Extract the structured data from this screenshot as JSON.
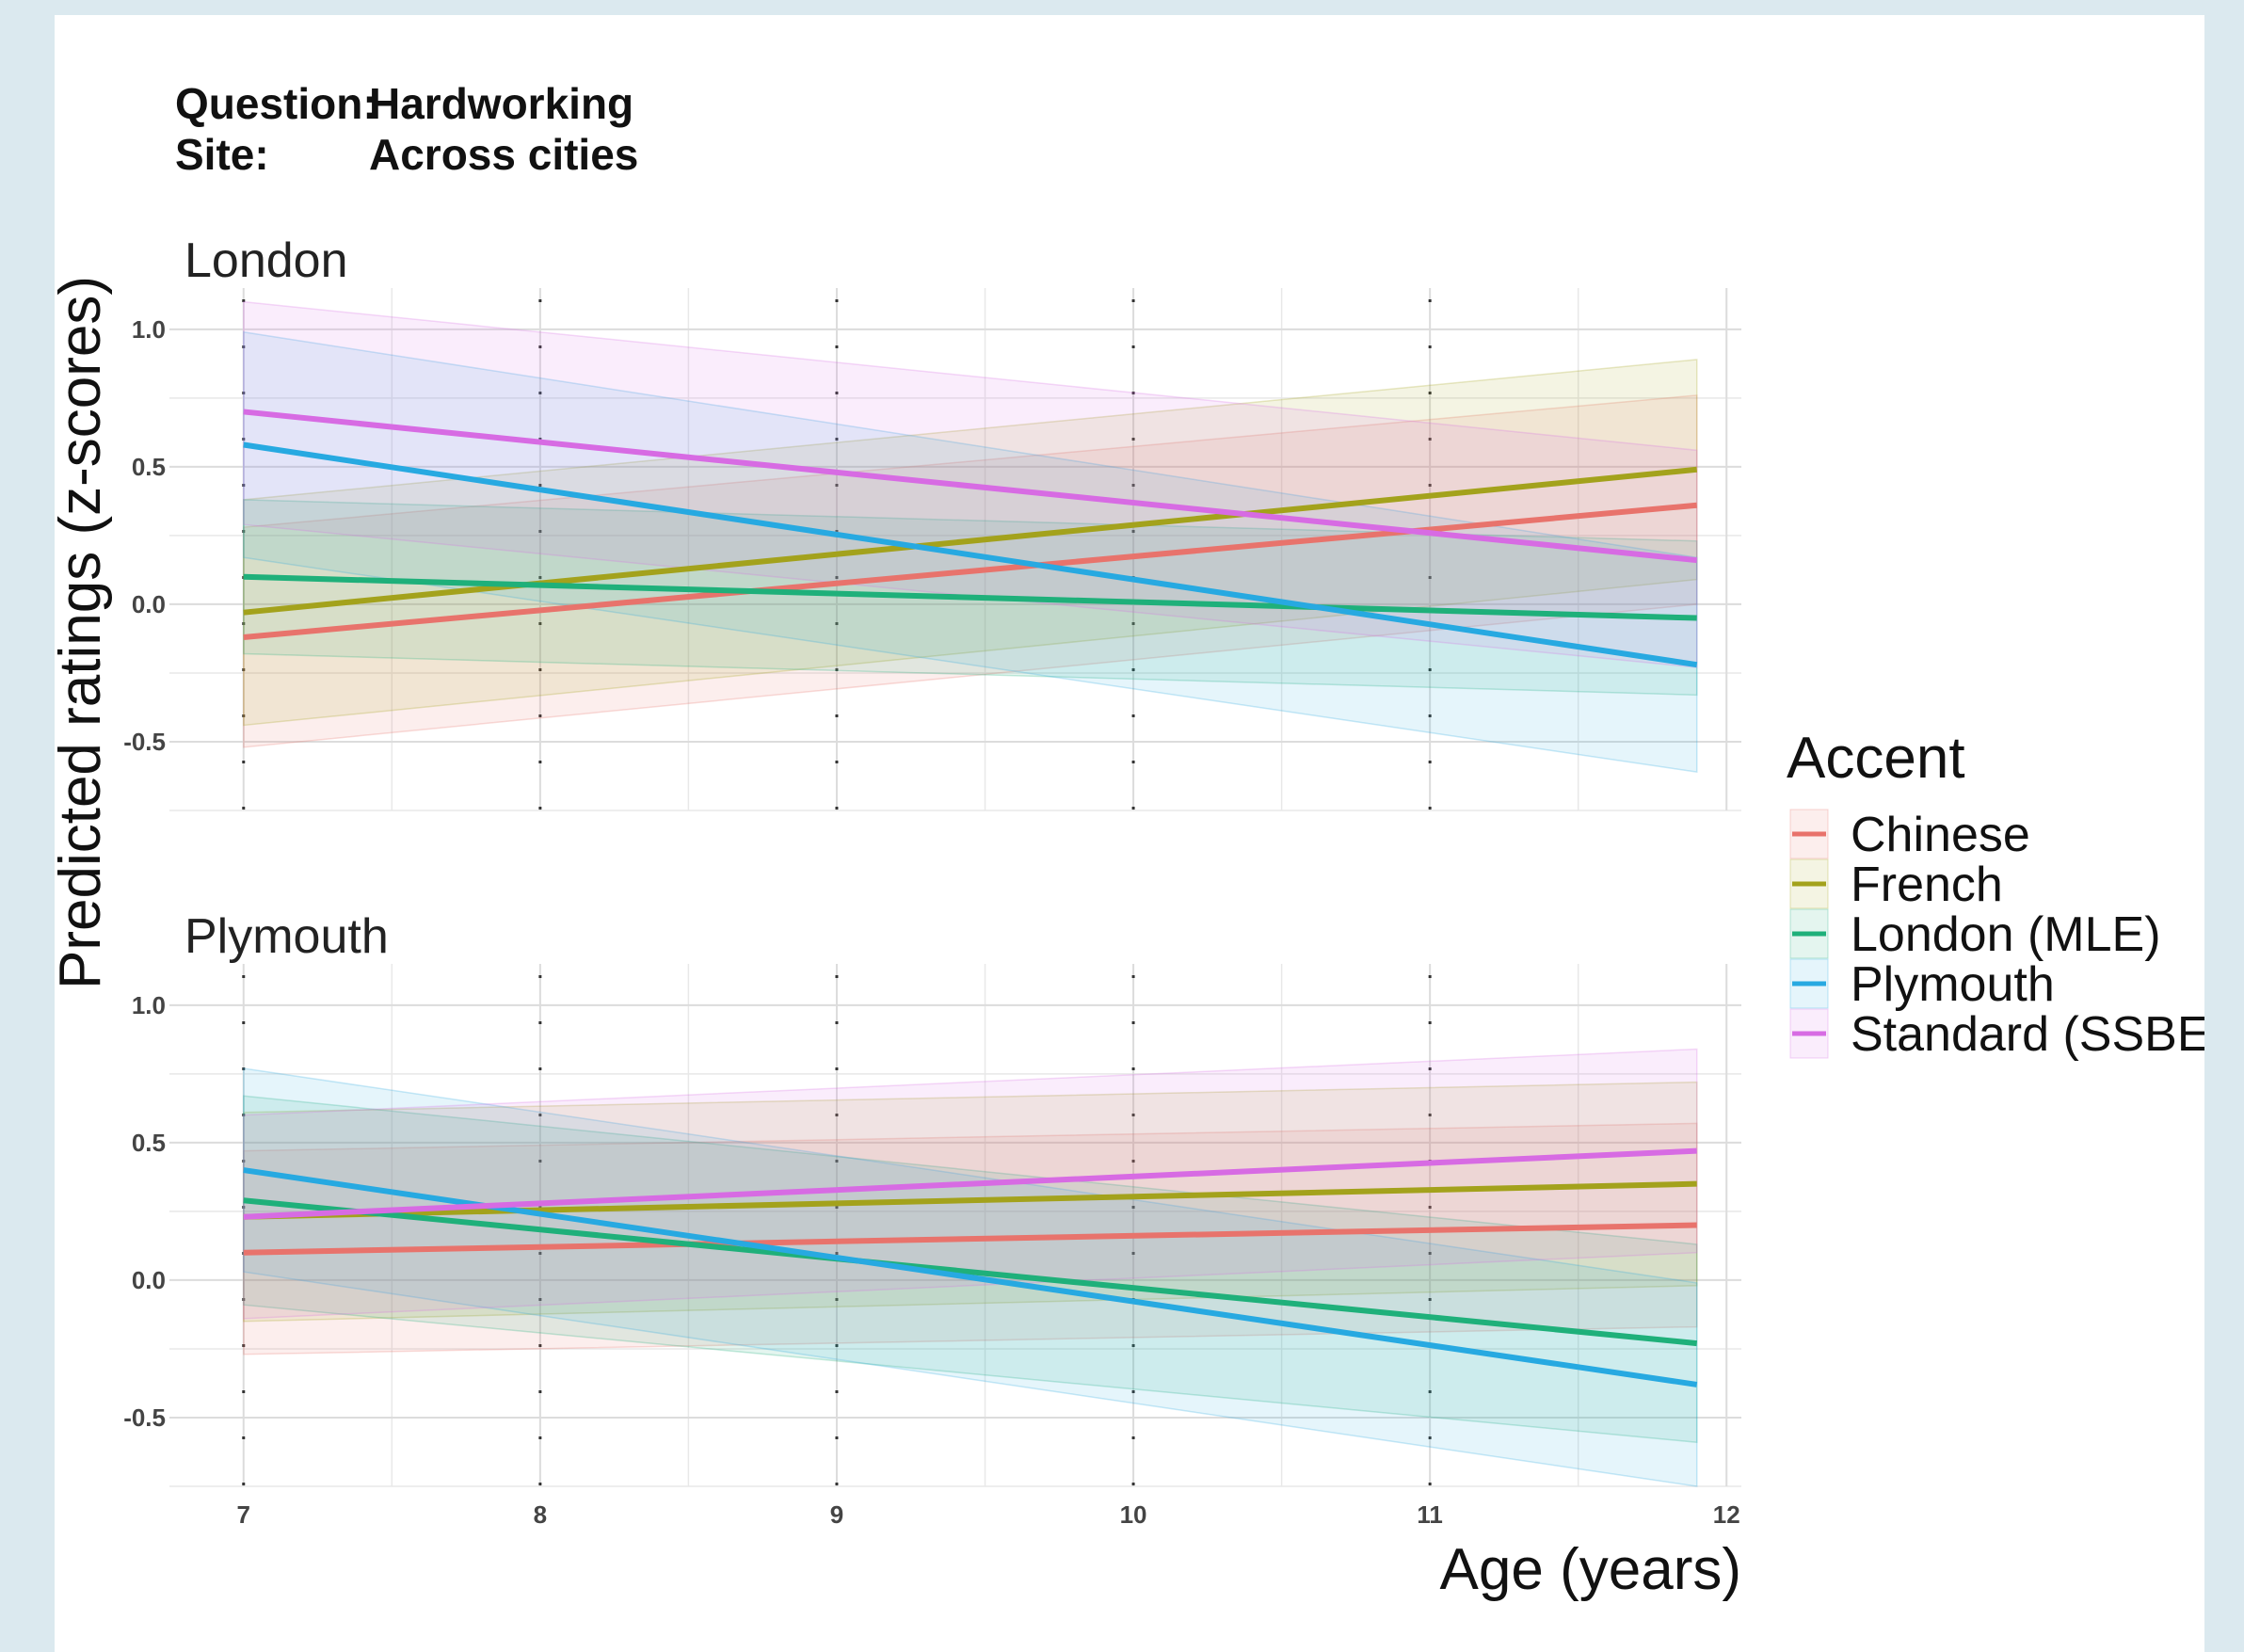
{
  "header": {
    "question_label": "Question:",
    "question_value": "Hardworking",
    "site_label": "Site:",
    "site_value": "Across cities"
  },
  "colors": {
    "Chinese": "#E8736C",
    "French": "#A3A21C",
    "London (MLE)": "#1FB07A",
    "Plymouth": "#27A9E1",
    "Standard (SSBE)": "#D76BE3"
  },
  "chart_data": {
    "type": "line",
    "xlabel": "Age (years)",
    "ylabel": "Predicted ratings (z-scores)",
    "xlim": [
      6.75,
      12.05
    ],
    "ylim": [
      -0.75,
      1.15
    ],
    "x_ticks": [
      7,
      8,
      9,
      10,
      11,
      12
    ],
    "y_ticks": [
      -0.5,
      0.0,
      0.5,
      1.0
    ],
    "y_tick_labels": [
      "-0.5",
      "0.0",
      "0.5",
      "1.0"
    ],
    "grid": true,
    "legend_title": "Accent",
    "legend_position": "right",
    "legend_entries": [
      "Chinese",
      "French",
      "London (MLE)",
      "Plymouth",
      "Standard (SSBE)"
    ],
    "facets": [
      {
        "name": "London",
        "series": [
          {
            "name": "Chinese",
            "x": [
              7,
              11.9
            ],
            "y": [
              -0.12,
              0.36
            ],
            "lower": [
              -0.52,
              0.0
            ],
            "upper": [
              0.28,
              0.76
            ]
          },
          {
            "name": "French",
            "x": [
              7,
              11.9
            ],
            "y": [
              -0.03,
              0.49
            ],
            "lower": [
              -0.44,
              0.09
            ],
            "upper": [
              0.38,
              0.89
            ]
          },
          {
            "name": "London (MLE)",
            "x": [
              7,
              11.9
            ],
            "y": [
              0.1,
              -0.05
            ],
            "lower": [
              -0.18,
              -0.33
            ],
            "upper": [
              0.38,
              0.23
            ]
          },
          {
            "name": "Plymouth",
            "x": [
              7,
              11.9
            ],
            "y": [
              0.58,
              -0.22
            ],
            "lower": [
              0.17,
              -0.61
            ],
            "upper": [
              0.99,
              0.17
            ]
          },
          {
            "name": "Standard (SSBE)",
            "x": [
              7,
              11.9
            ],
            "y": [
              0.7,
              0.16
            ],
            "lower": [
              0.29,
              -0.23
            ],
            "upper": [
              1.1,
              0.56
            ]
          }
        ]
      },
      {
        "name": "Plymouth",
        "series": [
          {
            "name": "Chinese",
            "x": [
              7,
              11.9
            ],
            "y": [
              0.1,
              0.2
            ],
            "lower": [
              -0.27,
              -0.17
            ],
            "upper": [
              0.47,
              0.57
            ]
          },
          {
            "name": "French",
            "x": [
              7,
              11.9
            ],
            "y": [
              0.23,
              0.35
            ],
            "lower": [
              -0.15,
              -0.02
            ],
            "upper": [
              0.61,
              0.72
            ]
          },
          {
            "name": "London (MLE)",
            "x": [
              7,
              11.9
            ],
            "y": [
              0.29,
              -0.23
            ],
            "lower": [
              -0.09,
              -0.59
            ],
            "upper": [
              0.67,
              0.13
            ]
          },
          {
            "name": "Plymouth",
            "x": [
              7,
              11.9
            ],
            "y": [
              0.4,
              -0.38
            ],
            "lower": [
              0.03,
              -0.75
            ],
            "upper": [
              0.77,
              -0.01
            ]
          },
          {
            "name": "Standard (SSBE)",
            "x": [
              7,
              11.9
            ],
            "y": [
              0.23,
              0.47
            ],
            "lower": [
              -0.14,
              0.1
            ],
            "upper": [
              0.6,
              0.84
            ]
          }
        ]
      }
    ]
  }
}
